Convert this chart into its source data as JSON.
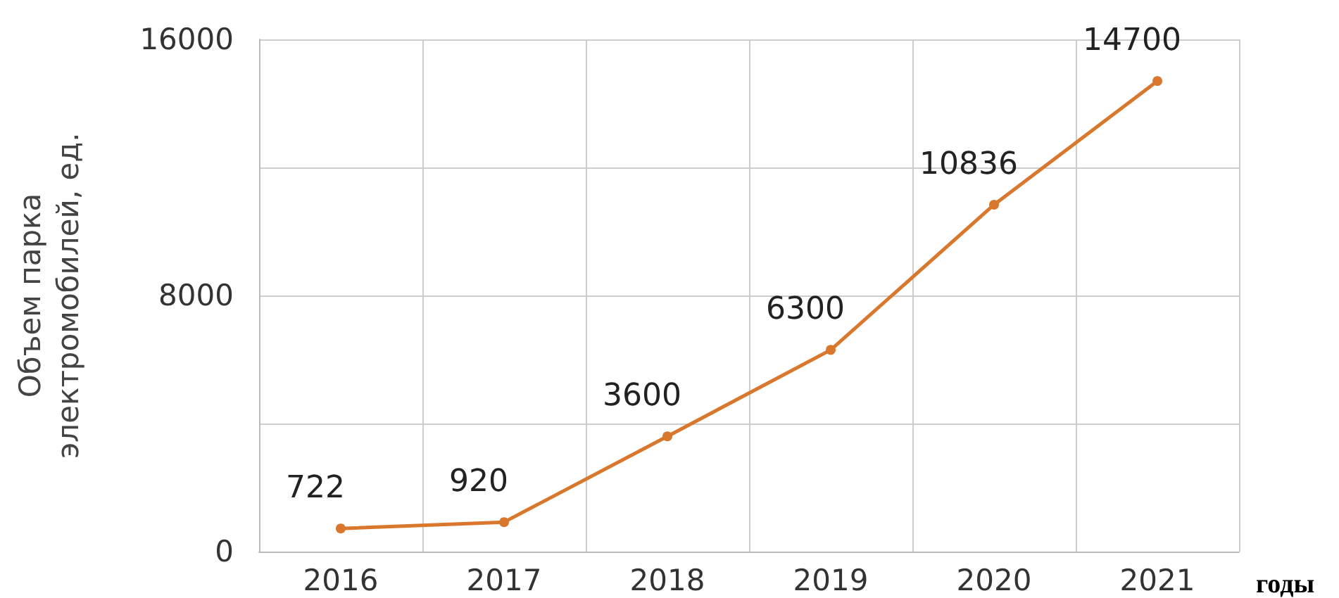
{
  "chart_data": {
    "type": "line",
    "ylabel": "Объем парка\nэлектромобилей, ед.",
    "xlabel": "годы",
    "categories": [
      "2016",
      "2017",
      "2018",
      "2019",
      "2020",
      "2021"
    ],
    "series": [
      {
        "color": "#d9782d",
        "values": [
          722,
          920,
          3600,
          6300,
          10836,
          14700
        ]
      }
    ],
    "ylim": [
      0,
      16000
    ],
    "yticks": [
      0,
      {
        "value": 4000,
        "label": null
      },
      8000,
      {
        "value": 12000,
        "label": null
      },
      16000
    ],
    "grid": true,
    "marker": "circle",
    "line_style": "solid",
    "data_labels": true
  }
}
